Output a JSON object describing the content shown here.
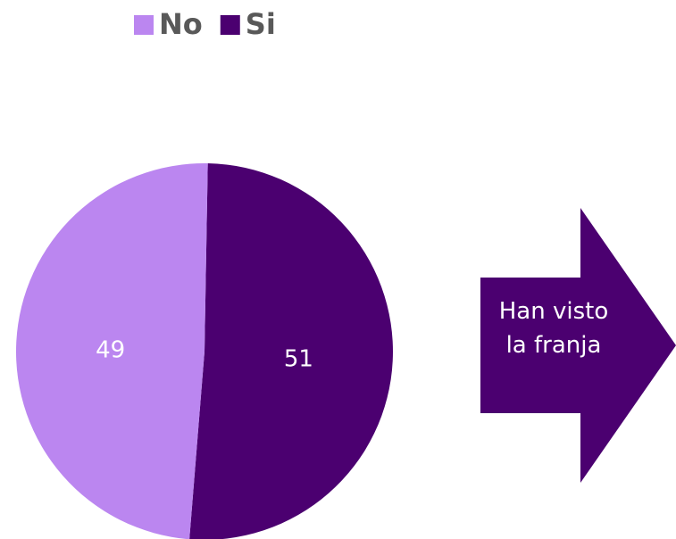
{
  "chart_data": {
    "type": "pie",
    "categories": [
      "No",
      "Si"
    ],
    "values": [
      49,
      51
    ],
    "colors": [
      "#bb86f0",
      "#4b0070"
    ],
    "legend": "top",
    "annotations": [
      "Han visto la franja"
    ]
  }
}
